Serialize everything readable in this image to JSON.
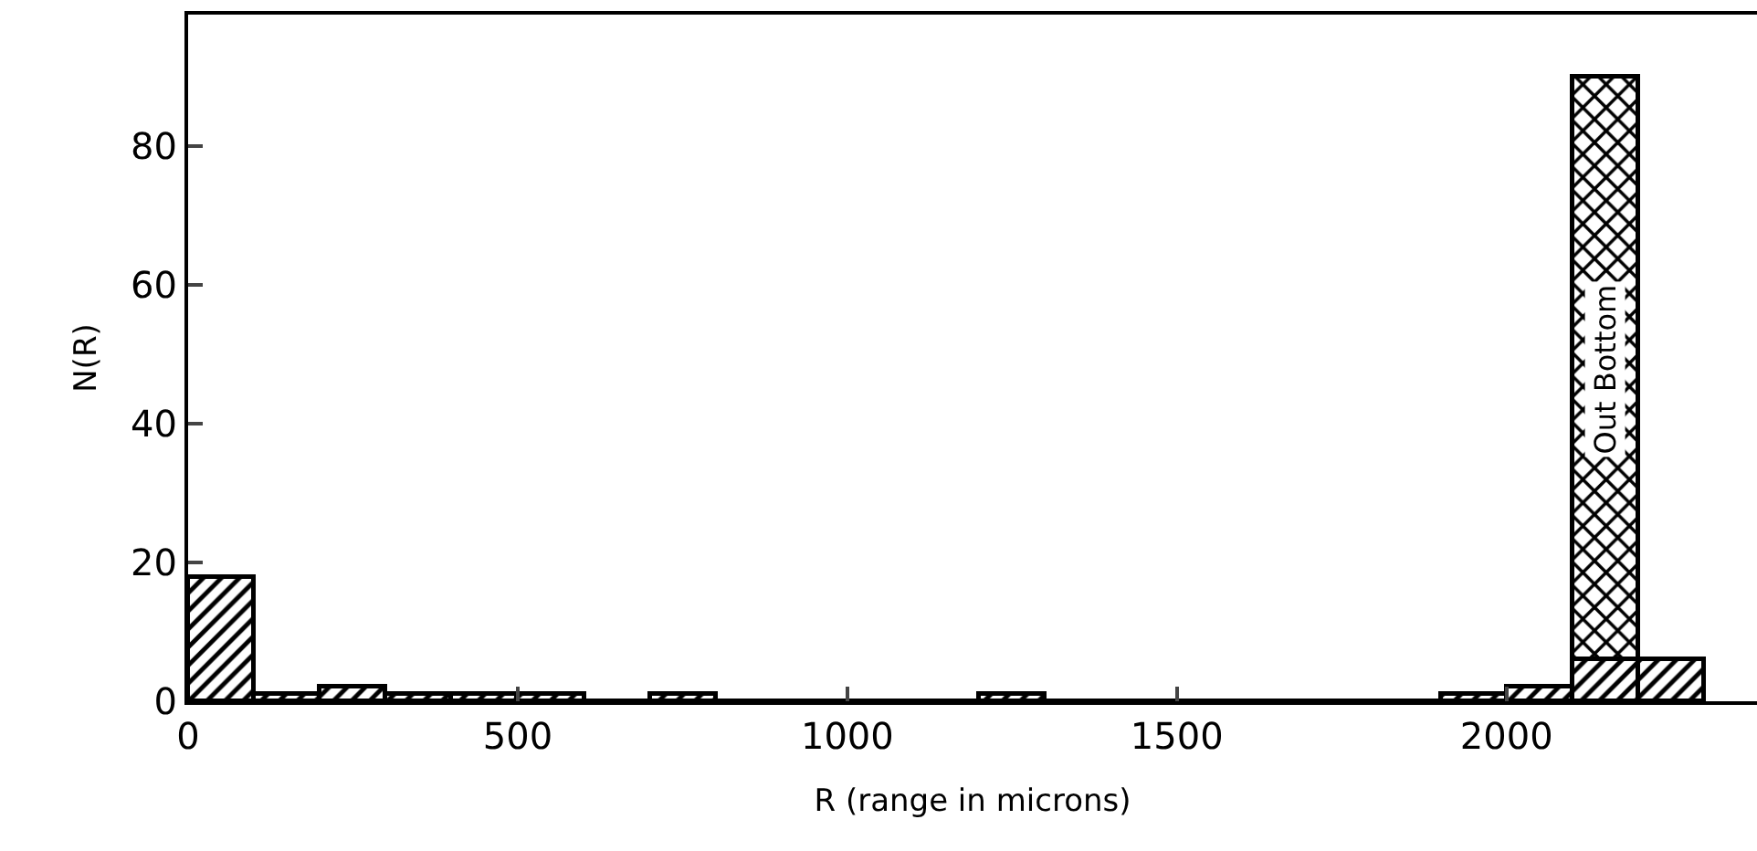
{
  "chart_data": {
    "type": "bar",
    "xlabel": "R (range in microns)",
    "ylabel": "N(R)",
    "x": [
      50,
      150,
      250,
      350,
      450,
      550,
      650,
      750,
      850,
      950,
      1050,
      1150,
      1250,
      1350,
      1450,
      1550,
      1650,
      1750,
      1850,
      1950,
      2050,
      2150,
      2250
    ],
    "series": [
      {
        "color": "#000000",
        "values": [
          18,
          1,
          2,
          1,
          1,
          1,
          0,
          1,
          0,
          0,
          0,
          0,
          1,
          0,
          0,
          0,
          0,
          0,
          0,
          1,
          2,
          6,
          6
        ]
      },
      {
        "name": "Out Bottom",
        "color": "#000000",
        "values": [
          null,
          null,
          null,
          null,
          null,
          null,
          null,
          null,
          null,
          null,
          null,
          null,
          null,
          null,
          null,
          null,
          null,
          null,
          null,
          null,
          null,
          84,
          null
        ]
      }
    ],
    "stacked": true,
    "xlim": [
      0,
      2380
    ],
    "xticks": [
      0,
      500,
      1000,
      1500,
      2000
    ],
    "ylim": [
      0,
      99
    ],
    "yticks": [
      0,
      20,
      40,
      60,
      80
    ],
    "grid": false,
    "legend": false
  }
}
